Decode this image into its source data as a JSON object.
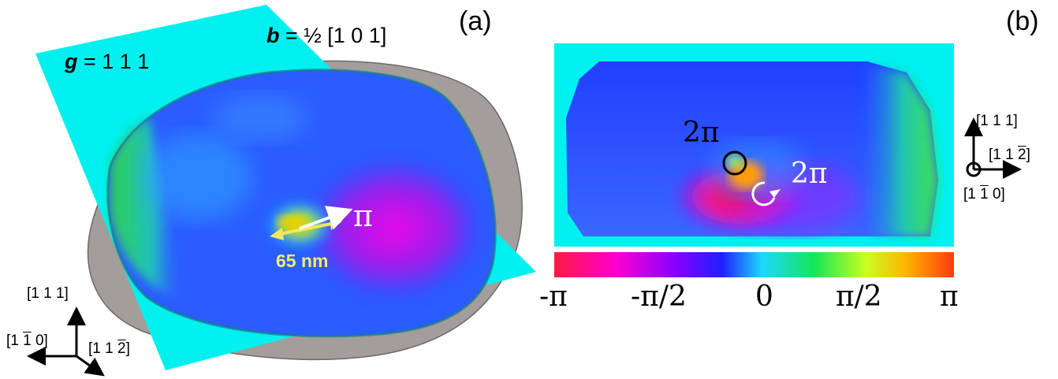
{
  "panel_a": {
    "label": "(a)",
    "g_symbol": "g",
    "g_value": " = 1 1 1",
    "b_symbol": "b",
    "b_value": " = ½ [1 0 1]",
    "size_label": "65 nm",
    "pi_label": "π",
    "axes": {
      "up": "[1 1 1]",
      "left_pre": "[1 ",
      "left_bar": "1",
      "left_post": " 0]",
      "right_pre": "[1 1 ",
      "right_bar": "2",
      "right_post": "]"
    }
  },
  "panel_b": {
    "label": "(b)",
    "winding_1": "2π",
    "winding_2": "2π",
    "axes": {
      "up": "[1 1 1]",
      "right_pre": "[1 1 ",
      "right_bar": "2",
      "right_post": "]",
      "bottom_pre": "[1 ",
      "bottom_bar": "1",
      "bottom_post": " 0]"
    }
  },
  "colorbar": {
    "ticks": [
      "-π",
      "-π/2",
      "0",
      "π/2",
      "π"
    ],
    "colors": [
      "#ff1a40",
      "#ff00cc",
      "#8a00ff",
      "#2020ff",
      "#1ed8ff",
      "#14e65a",
      "#c8ff1e",
      "#ffb400",
      "#ff3a10"
    ]
  },
  "colors": {
    "plane": "#00f0f0",
    "particle": "#a09a98"
  }
}
